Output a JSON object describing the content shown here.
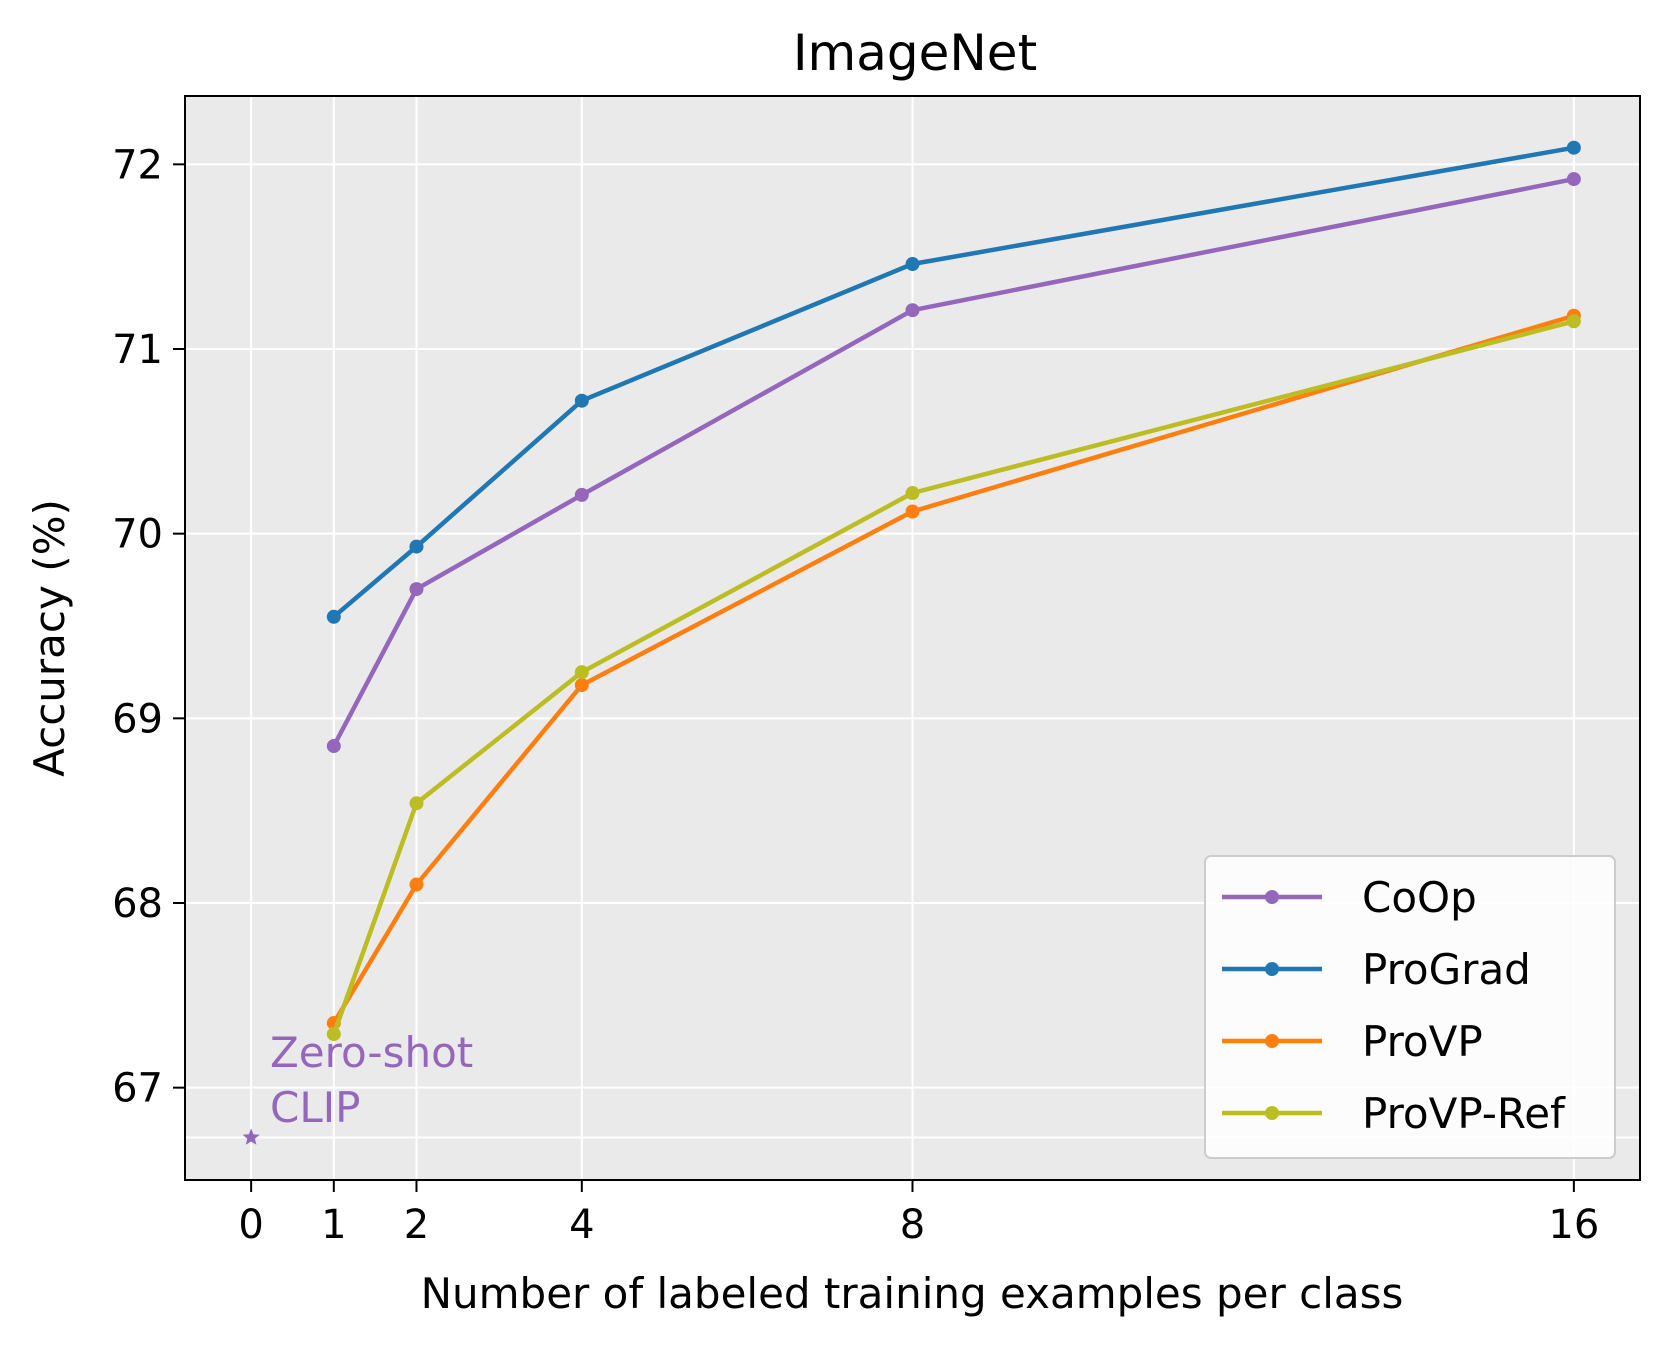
{
  "chart_data": {
    "type": "line",
    "title": "ImageNet",
    "xlabel": "Number of labeled training examples per class",
    "ylabel": "Accuracy (%)",
    "x_ticks": [
      0,
      1,
      2,
      4,
      8,
      16
    ],
    "y_ticks": [
      67,
      68,
      69,
      70,
      71,
      72
    ],
    "xlim": [
      -0.8,
      16.8
    ],
    "ylim": [
      66.5,
      72.37
    ],
    "grid": true,
    "background": "#eaeaea",
    "legend_position": "lower-right",
    "series": [
      {
        "name": "CoOp",
        "color": "#9467bd",
        "x": [
          1,
          2,
          4,
          8,
          16
        ],
        "values": [
          68.85,
          69.7,
          70.21,
          71.21,
          71.92
        ]
      },
      {
        "name": "ProGrad",
        "color": "#1f77b4",
        "x": [
          1,
          2,
          4,
          8,
          16
        ],
        "values": [
          69.55,
          69.93,
          70.72,
          71.46,
          72.09
        ]
      },
      {
        "name": "ProVP",
        "color": "#ff7f0e",
        "x": [
          1,
          2,
          4,
          8,
          16
        ],
        "values": [
          67.35,
          68.1,
          69.18,
          70.12,
          71.18
        ]
      },
      {
        "name": "ProVP-Ref",
        "color": "#bcbd22",
        "x": [
          1,
          2,
          4,
          8,
          16
        ],
        "values": [
          67.29,
          68.54,
          69.25,
          70.22,
          71.15
        ]
      }
    ],
    "zero_shot": {
      "label_line1": "Zero-shot",
      "label_line2": "CLIP",
      "x": 0,
      "value": 66.73,
      "color": "#9467bd"
    }
  }
}
